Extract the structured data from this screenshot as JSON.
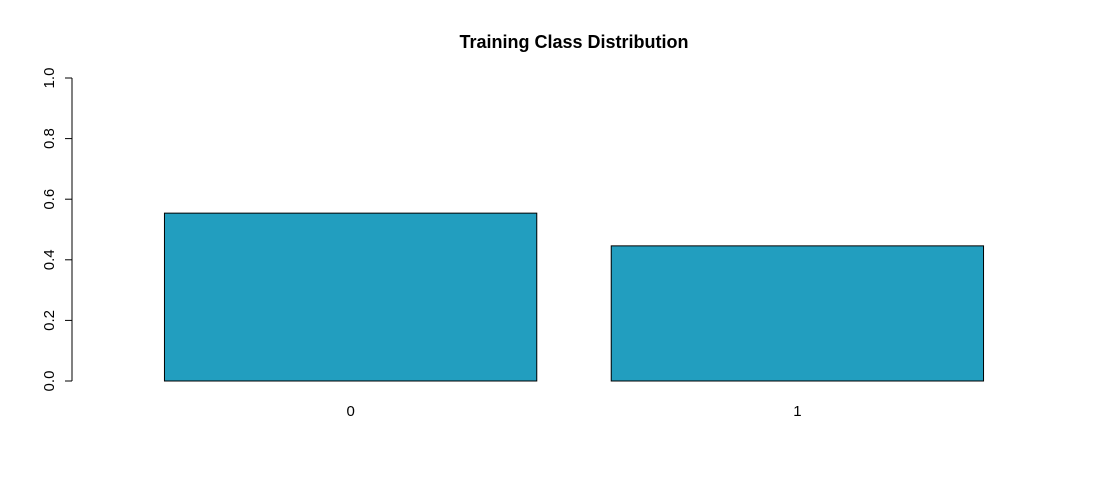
{
  "chart_data": {
    "type": "bar",
    "title": "Training Class Distribution",
    "xlabel": "",
    "ylabel": "",
    "categories": [
      "0",
      "1"
    ],
    "values": [
      0.554,
      0.446
    ],
    "ylim": [
      0,
      1
    ],
    "yticks": [
      "0.0",
      "0.2",
      "0.4",
      "0.6",
      "0.8",
      "1.0"
    ],
    "bar_color": "#229EBF",
    "grid": false,
    "legend": "none"
  }
}
